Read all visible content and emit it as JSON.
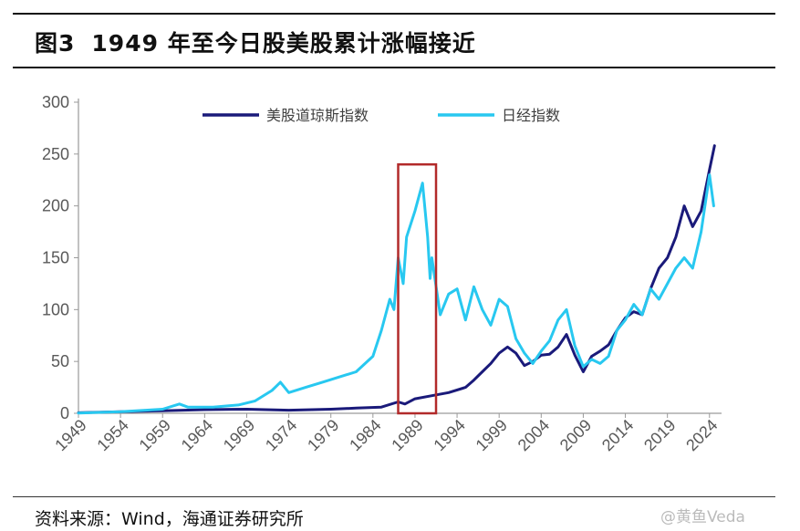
{
  "figure": {
    "title_label": "图3",
    "title_text": "1949 年至今日股美股累计涨幅接近",
    "source": "资料来源：Wind，海通证券研究所",
    "watermark": "@黄鱼Veda"
  },
  "chart_data": {
    "type": "line",
    "title": "1949 年至今日股美股累计涨幅接近",
    "xlabel": "",
    "ylabel": "",
    "xlim": [
      1949,
      2025
    ],
    "ylim": [
      0,
      300
    ],
    "y_ticks": [
      0,
      50,
      100,
      150,
      200,
      250,
      300
    ],
    "x_ticks": [
      1949,
      1954,
      1959,
      1964,
      1969,
      1974,
      1979,
      1984,
      1989,
      1994,
      1999,
      2004,
      2009,
      2014,
      2019,
      2024
    ],
    "legend_position": "top-center",
    "grid": false,
    "highlight_box": {
      "x_range": [
        1987,
        1991.5
      ],
      "y_range": [
        0,
        240
      ],
      "color": "#b22a2a"
    },
    "series": [
      {
        "name": "美股道琼斯指数",
        "color": "#1a1a7a",
        "points": [
          [
            1949,
            0.5
          ],
          [
            1954,
            1.5
          ],
          [
            1959,
            2.5
          ],
          [
            1964,
            3.5
          ],
          [
            1969,
            4
          ],
          [
            1974,
            3
          ],
          [
            1979,
            4
          ],
          [
            1982,
            5
          ],
          [
            1985,
            6
          ],
          [
            1987,
            11
          ],
          [
            1987.8,
            9
          ],
          [
            1989,
            14
          ],
          [
            1991,
            17
          ],
          [
            1993,
            20
          ],
          [
            1995,
            25
          ],
          [
            1996,
            32
          ],
          [
            1997,
            40
          ],
          [
            1998,
            48
          ],
          [
            1999,
            58
          ],
          [
            2000,
            64
          ],
          [
            2001,
            58
          ],
          [
            2002,
            46
          ],
          [
            2003,
            50
          ],
          [
            2004,
            56
          ],
          [
            2005,
            57
          ],
          [
            2006,
            64
          ],
          [
            2007,
            76
          ],
          [
            2008,
            56
          ],
          [
            2009,
            40
          ],
          [
            2010,
            55
          ],
          [
            2011,
            60
          ],
          [
            2012,
            66
          ],
          [
            2013,
            80
          ],
          [
            2014,
            92
          ],
          [
            2015,
            98
          ],
          [
            2016,
            95
          ],
          [
            2017,
            120
          ],
          [
            2018,
            140
          ],
          [
            2019,
            150
          ],
          [
            2020,
            170
          ],
          [
            2021,
            200
          ],
          [
            2022,
            180
          ],
          [
            2023,
            195
          ],
          [
            2024,
            235
          ],
          [
            2024.6,
            258
          ]
        ]
      },
      {
        "name": "日经指数",
        "color": "#28c8f0",
        "points": [
          [
            1949,
            0.3
          ],
          [
            1954,
            1.5
          ],
          [
            1957,
            3
          ],
          [
            1959,
            4
          ],
          [
            1961,
            9
          ],
          [
            1962,
            6
          ],
          [
            1965,
            6
          ],
          [
            1968,
            8
          ],
          [
            1970,
            12
          ],
          [
            1972,
            22
          ],
          [
            1973,
            30
          ],
          [
            1974,
            20
          ],
          [
            1976,
            25
          ],
          [
            1978,
            30
          ],
          [
            1980,
            35
          ],
          [
            1982,
            40
          ],
          [
            1984,
            55
          ],
          [
            1985,
            80
          ],
          [
            1986,
            110
          ],
          [
            1986.5,
            100
          ],
          [
            1987,
            150
          ],
          [
            1987.6,
            125
          ],
          [
            1988,
            170
          ],
          [
            1989,
            195
          ],
          [
            1989.9,
            222
          ],
          [
            1990.5,
            170
          ],
          [
            1990.8,
            130
          ],
          [
            1991,
            150
          ],
          [
            1992,
            95
          ],
          [
            1993,
            115
          ],
          [
            1994,
            120
          ],
          [
            1995,
            90
          ],
          [
            1996,
            122
          ],
          [
            1997,
            100
          ],
          [
            1998,
            85
          ],
          [
            1999,
            110
          ],
          [
            2000,
            103
          ],
          [
            2001,
            72
          ],
          [
            2002,
            58
          ],
          [
            2003,
            48
          ],
          [
            2004,
            60
          ],
          [
            2005,
            70
          ],
          [
            2006,
            90
          ],
          [
            2007,
            100
          ],
          [
            2008,
            65
          ],
          [
            2009,
            45
          ],
          [
            2010,
            52
          ],
          [
            2011,
            48
          ],
          [
            2012,
            55
          ],
          [
            2013,
            80
          ],
          [
            2014,
            90
          ],
          [
            2015,
            105
          ],
          [
            2016,
            95
          ],
          [
            2017,
            120
          ],
          [
            2018,
            110
          ],
          [
            2019,
            125
          ],
          [
            2020,
            140
          ],
          [
            2021,
            150
          ],
          [
            2022,
            140
          ],
          [
            2023,
            175
          ],
          [
            2024,
            230
          ],
          [
            2024.5,
            200
          ]
        ]
      }
    ]
  }
}
